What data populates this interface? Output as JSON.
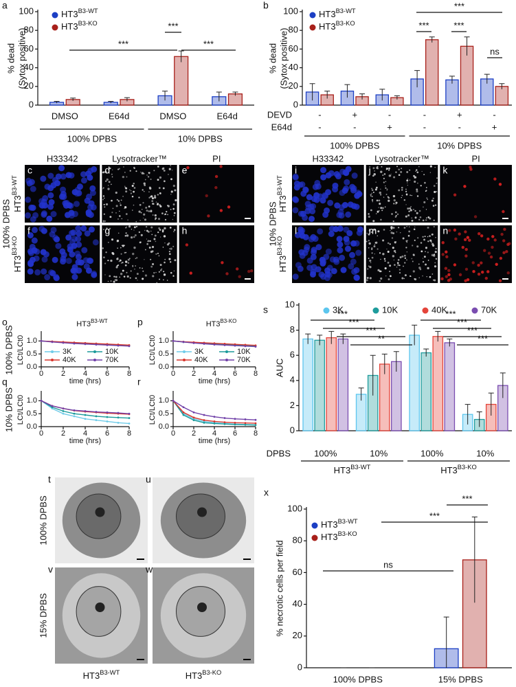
{
  "chart_data": [
    {
      "panel": "a",
      "type": "bar",
      "ylabel": [
        "% dead",
        "(Sytox positive)"
      ],
      "categories": [
        "DMSO",
        "E64d",
        "DMSO",
        "E64d"
      ],
      "groups": [
        "100% DPBS",
        "10% DPBS"
      ],
      "series": [
        {
          "name": {
            "text": "HT3",
            "sup": "B3-WT"
          },
          "color": "#1c3fc4",
          "values": [
            3,
            3,
            10,
            9
          ],
          "errors": [
            1,
            1,
            5,
            5
          ]
        },
        {
          "name": {
            "text": "HT3",
            "sup": "B3-KO"
          },
          "color": "#a8201a",
          "values": [
            6,
            6,
            52,
            12
          ],
          "errors": [
            1.5,
            2,
            6,
            2
          ]
        }
      ],
      "ylim": [
        0,
        100
      ],
      "yticks": [
        0,
        20,
        40,
        60,
        80,
        100
      ],
      "legend": "upper left",
      "annotations": [
        "***",
        "***",
        "***"
      ]
    },
    {
      "panel": "b",
      "type": "bar",
      "ylabel": [
        "% dead",
        "(Sytox positive)"
      ],
      "categories": [
        null,
        null,
        null,
        null,
        null,
        null
      ],
      "groups": [
        "100% DPBS",
        "10% DPBS"
      ],
      "treatments": [
        {
          "name": "DEVD",
          "levels": [
            "-",
            "+",
            "-",
            "-",
            "+",
            "-"
          ]
        },
        {
          "name": "E64d",
          "levels": [
            "-",
            "-",
            "+",
            "-",
            "-",
            "+"
          ]
        }
      ],
      "series": [
        {
          "name": {
            "text": "HT3",
            "sup": "B3-WT"
          },
          "color": "#1c3fc4",
          "values": [
            14,
            15,
            11,
            28,
            27,
            28
          ],
          "errors": [
            9,
            7,
            6,
            9,
            4,
            5
          ]
        },
        {
          "name": {
            "text": "HT3",
            "sup": "B3-KO"
          },
          "color": "#a8201a",
          "values": [
            11,
            9,
            8,
            70,
            63,
            20
          ],
          "errors": [
            4,
            3,
            2,
            3,
            10,
            3
          ]
        }
      ],
      "ylim": [
        0,
        100
      ],
      "yticks": [
        0,
        20,
        40,
        60,
        80,
        100
      ],
      "legend": "upper left",
      "annotations": [
        "***",
        "***",
        "***",
        "ns"
      ]
    },
    {
      "panel": "o",
      "type": "line",
      "title": {
        "text": "HT3",
        "sup": "B3-WT"
      },
      "row_label": "100% DPBS",
      "ylabel": "LCt/LCt0",
      "xlabel": "time (hrs)",
      "x": [
        0,
        1,
        2,
        3,
        4,
        5,
        6,
        7,
        8
      ],
      "xlim": [
        0,
        8
      ],
      "xticks": [
        0,
        2,
        4,
        6,
        8
      ],
      "ylim": [
        0,
        1.3
      ],
      "yticks": [
        {
          "value": 0,
          "label": "0.0"
        },
        {
          "value": 0.5,
          "label": "0.5"
        },
        {
          "value": 1,
          "label": "1.0"
        }
      ],
      "legend": true,
      "series": [
        {
          "name": "3K",
          "color": "#6fcbe8",
          "values": [
            1,
            0.98,
            0.95,
            0.93,
            0.91,
            0.89,
            0.87,
            0.85,
            0.83
          ]
        },
        {
          "name": "10K",
          "color": "#1a9a9a",
          "values": [
            1,
            0.97,
            0.94,
            0.92,
            0.9,
            0.88,
            0.86,
            0.84,
            0.82
          ]
        },
        {
          "name": "40K",
          "color": "#d8352c",
          "values": [
            1,
            0.98,
            0.96,
            0.94,
            0.92,
            0.9,
            0.88,
            0.86,
            0.84
          ]
        },
        {
          "name": "70K",
          "color": "#7040a8",
          "values": [
            1,
            0.96,
            0.93,
            0.9,
            0.88,
            0.86,
            0.84,
            0.82,
            0.8
          ]
        }
      ]
    },
    {
      "panel": "p",
      "type": "line",
      "title": {
        "text": "HT3",
        "sup": "B3-KO"
      },
      "ylabel": "LCt/LCt0",
      "xlabel": "time (hrs)",
      "x": [
        0,
        1,
        2,
        3,
        4,
        5,
        6,
        7,
        8
      ],
      "xlim": [
        0,
        8
      ],
      "xticks": [
        0,
        2,
        4,
        6,
        8
      ],
      "ylim": [
        0,
        1.3
      ],
      "yticks": [
        {
          "value": 0,
          "label": "0.0"
        },
        {
          "value": 0.5,
          "label": "0.5"
        },
        {
          "value": 1,
          "label": "1.0"
        }
      ],
      "legend": true,
      "series": [
        {
          "name": "3K",
          "color": "#6fcbe8",
          "values": [
            1,
            0.97,
            0.94,
            0.92,
            0.9,
            0.88,
            0.86,
            0.84,
            0.82
          ]
        },
        {
          "name": "10K",
          "color": "#1a9a9a",
          "values": [
            1,
            0.96,
            0.93,
            0.9,
            0.88,
            0.86,
            0.84,
            0.82,
            0.8
          ]
        },
        {
          "name": "40K",
          "color": "#d8352c",
          "values": [
            1,
            0.97,
            0.95,
            0.93,
            0.91,
            0.89,
            0.87,
            0.85,
            0.83
          ]
        },
        {
          "name": "70K",
          "color": "#7040a8",
          "values": [
            1,
            0.96,
            0.92,
            0.89,
            0.86,
            0.84,
            0.82,
            0.8,
            0.78
          ]
        }
      ]
    },
    {
      "panel": "q",
      "type": "line",
      "row_label": "10% DPBS",
      "ylabel": "LCt/LCt0",
      "xlabel": "time (hrs)",
      "x": [
        0,
        1,
        2,
        3,
        4,
        5,
        6,
        7,
        8
      ],
      "xlim": [
        0,
        8
      ],
      "xticks": [
        0,
        2,
        4,
        6,
        8
      ],
      "ylim": [
        0,
        1.3
      ],
      "yticks": [
        {
          "value": 0,
          "label": "0.0"
        },
        {
          "value": 0.5,
          "label": "0.5"
        },
        {
          "value": 1,
          "label": "1.0"
        }
      ],
      "legend": false,
      "series": [
        {
          "name": "3K",
          "color": "#6fcbe8",
          "values": [
            1,
            0.7,
            0.5,
            0.4,
            0.3,
            0.25,
            0.2,
            0.15,
            0.12
          ]
        },
        {
          "name": "10K",
          "color": "#1a9a9a",
          "values": [
            1,
            0.75,
            0.6,
            0.5,
            0.45,
            0.4,
            0.37,
            0.35,
            0.33
          ]
        },
        {
          "name": "40K",
          "color": "#d8352c",
          "values": [
            1,
            0.8,
            0.7,
            0.62,
            0.58,
            0.55,
            0.52,
            0.5,
            0.48
          ]
        },
        {
          "name": "70K",
          "color": "#7040a8",
          "values": [
            1,
            0.8,
            0.7,
            0.63,
            0.6,
            0.57,
            0.55,
            0.53,
            0.5
          ]
        }
      ]
    },
    {
      "panel": "r",
      "type": "line",
      "ylabel": "LCt/LCt0",
      "xlabel": "time (hrs)",
      "x": [
        0,
        1,
        2,
        3,
        4,
        5,
        6,
        7,
        8
      ],
      "xlim": [
        0,
        8
      ],
      "xticks": [
        0,
        2,
        4,
        6,
        8
      ],
      "ylim": [
        0,
        1.3
      ],
      "yticks": [
        {
          "value": 0,
          "label": "0.0"
        },
        {
          "value": 0.5,
          "label": "0.5"
        },
        {
          "value": 1,
          "label": "1.0"
        }
      ],
      "legend": false,
      "series": [
        {
          "name": "3K",
          "color": "#6fcbe8",
          "values": [
            1,
            0.5,
            0.3,
            0.2,
            0.15,
            0.12,
            0.1,
            0.08,
            0.07
          ]
        },
        {
          "name": "10K",
          "color": "#1a9a9a",
          "values": [
            1,
            0.45,
            0.25,
            0.15,
            0.12,
            0.1,
            0.08,
            0.07,
            0.06
          ]
        },
        {
          "name": "40K",
          "color": "#d8352c",
          "values": [
            1,
            0.55,
            0.35,
            0.25,
            0.2,
            0.17,
            0.15,
            0.14,
            0.13
          ]
        },
        {
          "name": "70K",
          "color": "#7040a8",
          "values": [
            1,
            0.75,
            0.55,
            0.45,
            0.38,
            0.33,
            0.3,
            0.28,
            0.26
          ]
        }
      ]
    },
    {
      "panel": "s",
      "type": "bar",
      "ylabel": "AUC",
      "xlabel": "DPBS",
      "categories": [
        "100%",
        "10%",
        "100%",
        "10%"
      ],
      "groups": [
        {
          "text": "HT3",
          "sup": "B3-WT"
        },
        {
          "text": "HT3",
          "sup": "B3-KO"
        }
      ],
      "series": [
        {
          "name": "3K",
          "color": "#5cc6ee",
          "values": [
            7.3,
            2.9,
            7.6,
            1.3
          ],
          "errors": [
            0.4,
            0.5,
            0.8,
            0.8
          ]
        },
        {
          "name": "10K",
          "color": "#1e9c9c",
          "values": [
            7.2,
            4.4,
            6.2,
            0.9
          ],
          "errors": [
            0.4,
            1.6,
            0.3,
            0.6
          ]
        },
        {
          "name": "40K",
          "color": "#e4443a",
          "values": [
            7.4,
            5.3,
            7.5,
            2.1
          ],
          "errors": [
            0.5,
            0.8,
            0.4,
            0.9
          ]
        },
        {
          "name": "70K",
          "color": "#7a4db0",
          "values": [
            7.3,
            5.5,
            7.0,
            3.6
          ],
          "errors": [
            0.4,
            0.8,
            0.3,
            1.0
          ]
        }
      ],
      "ylim": [
        0,
        10
      ],
      "yticks": [
        0,
        2,
        4,
        6,
        8,
        10
      ],
      "legend": "top",
      "annotations": [
        "***",
        "***",
        "***",
        "**",
        "***",
        "***",
        "***",
        "***"
      ]
    },
    {
      "panel": "x",
      "type": "bar",
      "ylabel": "% necrotic cells per field",
      "categories": [
        "100% DPBS",
        "15% DPBS"
      ],
      "series": [
        {
          "name": {
            "text": "HT3",
            "sup": "B3-WT"
          },
          "color": "#1c3fc4",
          "values": [
            0,
            12
          ],
          "errors": [
            0,
            20
          ]
        },
        {
          "name": {
            "text": "HT3",
            "sup": "B3-KO"
          },
          "color": "#a8201a",
          "values": [
            0,
            68
          ],
          "errors": [
            0,
            27
          ]
        }
      ],
      "ylim": [
        0,
        100
      ],
      "yticks": [
        0,
        20,
        40,
        60,
        80,
        100
      ],
      "legend": "upper left",
      "annotations": [
        "ns",
        "***",
        "***"
      ]
    }
  ],
  "micrographs": [
    {
      "row_label": "100% DPBS",
      "columns": [
        "H33342",
        "Lysotracker™",
        "PI"
      ],
      "rows": [
        {
          "label": {
            "text": "HT3",
            "sup": "B3-WT"
          },
          "panels": [
            "c",
            "d",
            "e"
          ]
        },
        {
          "label": {
            "text": "HT3",
            "sup": "B3-KO"
          },
          "panels": [
            "f",
            "g",
            "h"
          ]
        }
      ]
    },
    {
      "row_label": "10% DPBS",
      "columns": [
        "H33342",
        "Lysotracker™",
        "PI"
      ],
      "rows": [
        {
          "label": {
            "text": "HT3",
            "sup": "B3-WT"
          },
          "panels": [
            "i",
            "j",
            "k"
          ]
        },
        {
          "label": {
            "text": "HT3",
            "sup": "B3-KO"
          },
          "panels": [
            "l",
            "m",
            "n"
          ]
        }
      ]
    }
  ],
  "electron_micrographs": {
    "row_labels": [
      "100% DPBS",
      "15% DPBS"
    ],
    "panels": [
      [
        "t",
        "u"
      ],
      [
        "v",
        "w"
      ]
    ],
    "column_labels": [
      {
        "text": "HT3",
        "sup": "B3-WT"
      },
      {
        "text": "HT3",
        "sup": "B3-KO"
      }
    ]
  }
}
